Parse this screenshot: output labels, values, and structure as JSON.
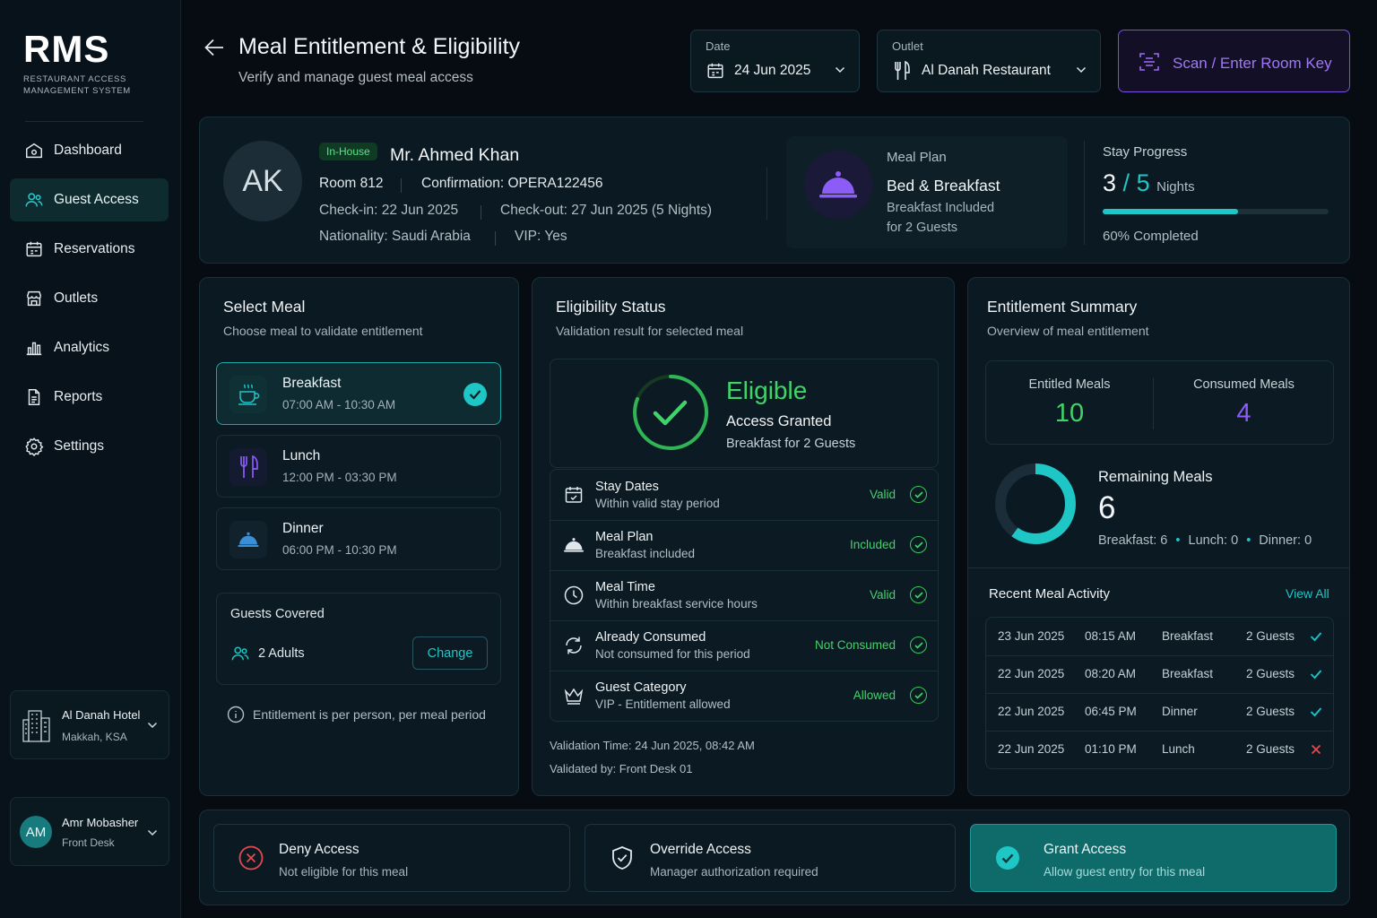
{
  "brand": {
    "name": "RMS",
    "tagline": "RESTAURANT ACCESS MANAGEMENT SYSTEM"
  },
  "sidebar": {
    "items": [
      {
        "label": "Dashboard",
        "icon": "home-icon"
      },
      {
        "label": "Guest Access",
        "icon": "users-icon",
        "active": true
      },
      {
        "label": "Reservations",
        "icon": "calendar-icon"
      },
      {
        "label": "Outlets",
        "icon": "store-icon"
      },
      {
        "label": "Analytics",
        "icon": "bar-chart-icon"
      },
      {
        "label": "Reports",
        "icon": "document-icon"
      },
      {
        "label": "Settings",
        "icon": "gear-icon"
      }
    ],
    "hotel": {
      "name": "Al Danah Hotel",
      "location": "Makkah, KSA"
    },
    "user": {
      "initials": "AM",
      "name": "Amr Mobasher",
      "role": "Front Desk"
    }
  },
  "header": {
    "title": "Meal Entitlement & Eligibility",
    "subtitle": "Verify and manage guest meal access",
    "date": {
      "label": "Date",
      "value": "24 Jun 2025"
    },
    "outlet": {
      "label": "Outlet",
      "value": "Al Danah Restaurant"
    },
    "scan_button": "Scan / Enter Room Key"
  },
  "guest": {
    "initials": "AK",
    "status": "In-House",
    "name": "Mr. Ahmed Khan",
    "room": "Room 812",
    "confirmation": "Confirmation: OPERA122456",
    "checkin": "Check-in: 22 Jun 2025",
    "checkout": "Check-out: 27 Jun 2025 (5 Nights)",
    "nationality": "Nationality: Saudi Arabia",
    "vip": "VIP: Yes"
  },
  "meal_plan": {
    "label": "Meal Plan",
    "name": "Bed & Breakfast",
    "desc1": "Breakfast Included",
    "desc2": "for 2 Guests"
  },
  "stay_progress": {
    "label": "Stay Progress",
    "current": "3",
    "slash": "/",
    "total": "5",
    "unit": "Nights",
    "percent": 60,
    "completed": "60% Completed"
  },
  "select_meal": {
    "title": "Select Meal",
    "subtitle": "Choose meal to validate entitlement",
    "meals": [
      {
        "name": "Breakfast",
        "time": "07:00 AM - 10:30 AM",
        "icon": "coffee-cup-icon",
        "selected": true
      },
      {
        "name": "Lunch",
        "time": "12:00 PM - 03:30 PM",
        "icon": "fork-knife-icon",
        "selected": false
      },
      {
        "name": "Dinner",
        "time": "06:00 PM - 10:30 PM",
        "icon": "cloche-icon",
        "selected": false
      }
    ],
    "guests_covered": {
      "label": "Guests Covered",
      "value": "2 Adults",
      "change": "Change"
    },
    "note": "Entitlement is per person, per meal period"
  },
  "eligibility": {
    "title": "Eligibility Status",
    "subtitle": "Validation result for selected meal",
    "result": "Eligible",
    "result_sub": "Access Granted",
    "result_detail": "Breakfast for 2 Guests",
    "checks": [
      {
        "title": "Stay Dates",
        "desc": "Within valid stay period",
        "status": "Valid",
        "icon": "calendar-icon"
      },
      {
        "title": "Meal Plan",
        "desc": "Breakfast included",
        "status": "Included",
        "icon": "cloche-icon"
      },
      {
        "title": "Meal Time",
        "desc": "Within breakfast service hours",
        "status": "Valid",
        "icon": "clock-icon"
      },
      {
        "title": "Already Consumed",
        "desc": "Not consumed for this period",
        "status": "Not Consumed",
        "icon": "refresh-icon"
      },
      {
        "title": "Guest Category",
        "desc": "VIP - Entitlement allowed",
        "status": "Allowed",
        "icon": "crown-icon"
      }
    ],
    "validation_time": "Validation Time: 24 Jun 2025, 08:42 AM",
    "validated_by": "Validated by: Front Desk 01"
  },
  "summary": {
    "title": "Entitlement Summary",
    "subtitle": "Overview of meal entitlement",
    "entitled_label": "Entitled Meals",
    "entitled": "10",
    "consumed_label": "Consumed Meals",
    "consumed": "4",
    "remaining_label": "Remaining Meals",
    "remaining": "6",
    "remaining_fraction": 0.6,
    "breakdown": {
      "breakfast": "Breakfast: 6",
      "lunch": "Lunch: 0",
      "dinner": "Dinner: 0",
      "dot": "•"
    }
  },
  "recent": {
    "title": "Recent Meal Activity",
    "view_all": "View All",
    "rows": [
      {
        "date": "23 Jun 2025",
        "time": "08:15 AM",
        "meal": "Breakfast",
        "guests": "2 Guests",
        "ok": true
      },
      {
        "date": "22 Jun 2025",
        "time": "08:20 AM",
        "meal": "Breakfast",
        "guests": "2 Guests",
        "ok": true
      },
      {
        "date": "22 Jun 2025",
        "time": "06:45 PM",
        "meal": "Dinner",
        "guests": "2 Guests",
        "ok": true
      },
      {
        "date": "22 Jun 2025",
        "time": "01:10 PM",
        "meal": "Lunch",
        "guests": "2 Guests",
        "ok": false
      }
    ]
  },
  "actions": {
    "deny": {
      "title": "Deny Access",
      "desc": "Not eligible for this meal"
    },
    "override": {
      "title": "Override Access",
      "desc": "Manager authorization required"
    },
    "grant": {
      "title": "Grant Access",
      "desc": "Allow guest entry for this meal"
    }
  },
  "colors": {
    "accent": "#1ec6c6",
    "success": "#3fd467",
    "purple": "#8b5cf6",
    "danger": "#e5484d",
    "background": "#060c12"
  }
}
